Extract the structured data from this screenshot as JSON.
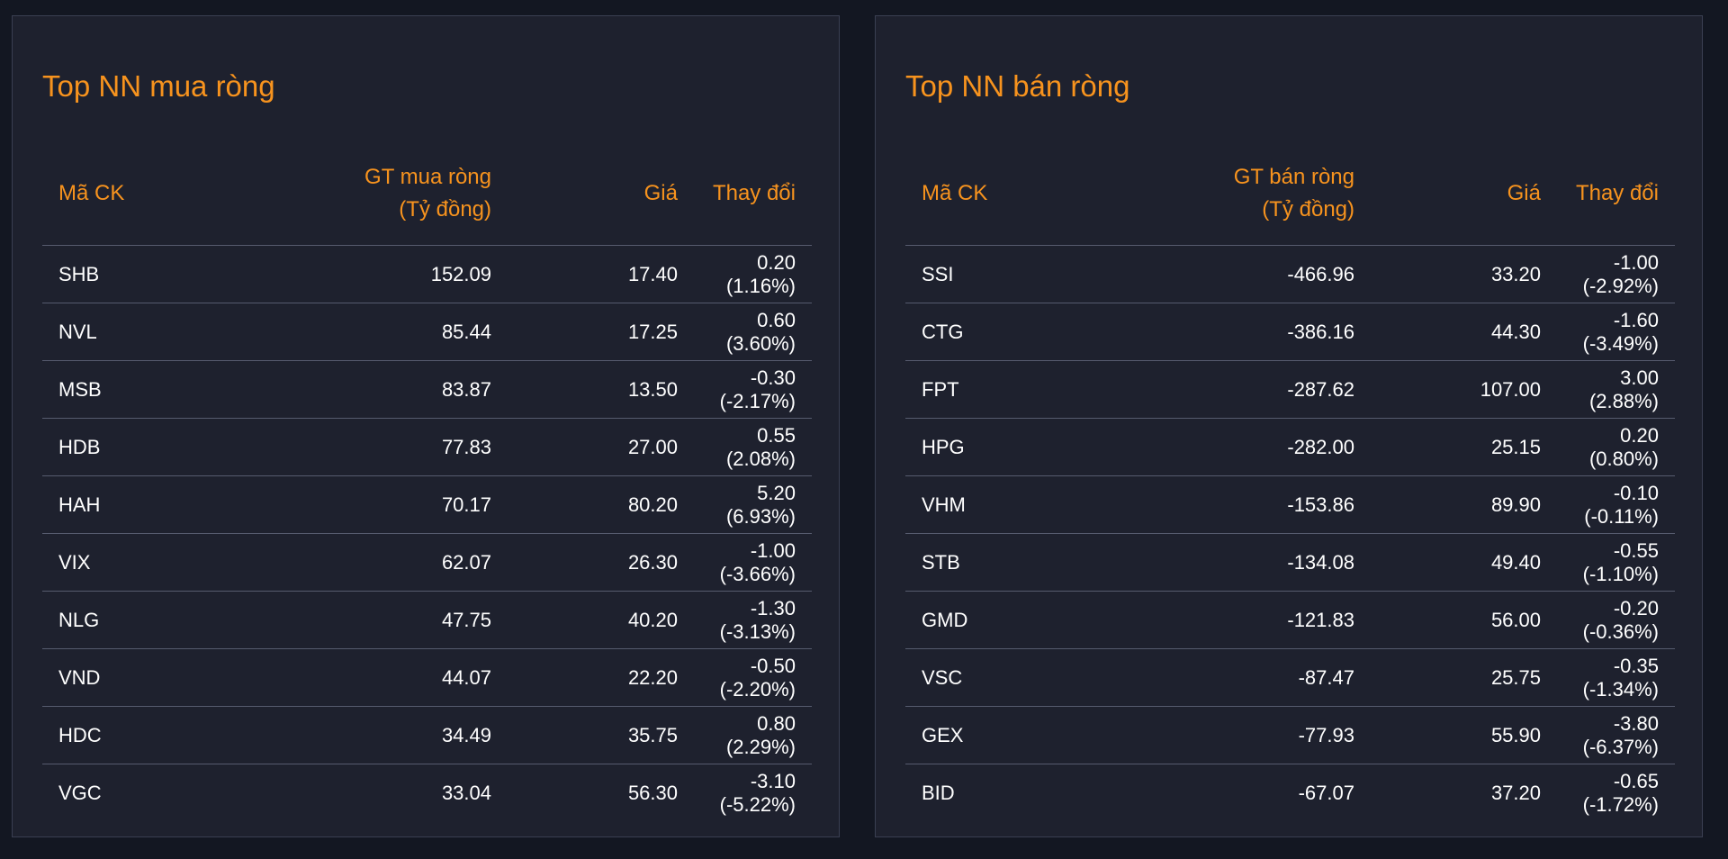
{
  "colors": {
    "background": "#131722",
    "panel": "#1e212e",
    "accent": "#f7931e",
    "up": "#2ebd5f",
    "down": "#f0493d",
    "ceiling": "#e02cf0"
  },
  "panels": [
    {
      "title": "Top NN mua ròng",
      "headers": {
        "symbol": "Mã CK",
        "value_line1": "GT mua ròng",
        "value_line2": "(Tỷ đồng)",
        "price": "Giá",
        "change": "Thay đổi"
      },
      "rows": [
        {
          "symbol": "SHB",
          "value": "152.09",
          "price": "17.40",
          "change": "0.20 (1.16%)",
          "trend": "up"
        },
        {
          "symbol": "NVL",
          "value": "85.44",
          "price": "17.25",
          "change": "0.60 (3.60%)",
          "trend": "up"
        },
        {
          "symbol": "MSB",
          "value": "83.87",
          "price": "13.50",
          "change": "-0.30 (-2.17%)",
          "trend": "down"
        },
        {
          "symbol": "HDB",
          "value": "77.83",
          "price": "27.00",
          "change": "0.55 (2.08%)",
          "trend": "up"
        },
        {
          "symbol": "HAH",
          "value": "70.17",
          "price": "80.20",
          "change": "5.20 (6.93%)",
          "trend": "ceil"
        },
        {
          "symbol": "VIX",
          "value": "62.07",
          "price": "26.30",
          "change": "-1.00 (-3.66%)",
          "trend": "down"
        },
        {
          "symbol": "NLG",
          "value": "47.75",
          "price": "40.20",
          "change": "-1.30 (-3.13%)",
          "trend": "down"
        },
        {
          "symbol": "VND",
          "value": "44.07",
          "price": "22.20",
          "change": "-0.50 (-2.20%)",
          "trend": "down"
        },
        {
          "symbol": "HDC",
          "value": "34.49",
          "price": "35.75",
          "change": "0.80 (2.29%)",
          "trend": "up"
        },
        {
          "symbol": "VGC",
          "value": "33.04",
          "price": "56.30",
          "change": "-3.10 (-5.22%)",
          "trend": "down"
        }
      ]
    },
    {
      "title": "Top NN bán ròng",
      "headers": {
        "symbol": "Mã CK",
        "value_line1": "GT bán ròng",
        "value_line2": "(Tỷ đồng)",
        "price": "Giá",
        "change": "Thay đổi"
      },
      "rows": [
        {
          "symbol": "SSI",
          "value": "-466.96",
          "price": "33.20",
          "change": "-1.00 (-2.92%)",
          "trend": "down"
        },
        {
          "symbol": "CTG",
          "value": "-386.16",
          "price": "44.30",
          "change": "-1.60 (-3.49%)",
          "trend": "down"
        },
        {
          "symbol": "FPT",
          "value": "-287.62",
          "price": "107.00",
          "change": "3.00 (2.88%)",
          "trend": "up"
        },
        {
          "symbol": "HPG",
          "value": "-282.00",
          "price": "25.15",
          "change": "0.20 (0.80%)",
          "trend": "up"
        },
        {
          "symbol": "VHM",
          "value": "-153.86",
          "price": "89.90",
          "change": "-0.10 (-0.11%)",
          "trend": "down"
        },
        {
          "symbol": "STB",
          "value": "-134.08",
          "price": "49.40",
          "change": "-0.55 (-1.10%)",
          "trend": "down"
        },
        {
          "symbol": "GMD",
          "value": "-121.83",
          "price": "56.00",
          "change": "-0.20 (-0.36%)",
          "trend": "down"
        },
        {
          "symbol": "VSC",
          "value": "-87.47",
          "price": "25.75",
          "change": "-0.35 (-1.34%)",
          "trend": "down"
        },
        {
          "symbol": "GEX",
          "value": "-77.93",
          "price": "55.90",
          "change": "-3.80 (-6.37%)",
          "trend": "down"
        },
        {
          "symbol": "BID",
          "value": "-67.07",
          "price": "37.20",
          "change": "-0.65 (-1.72%)",
          "trend": "down"
        }
      ]
    }
  ]
}
